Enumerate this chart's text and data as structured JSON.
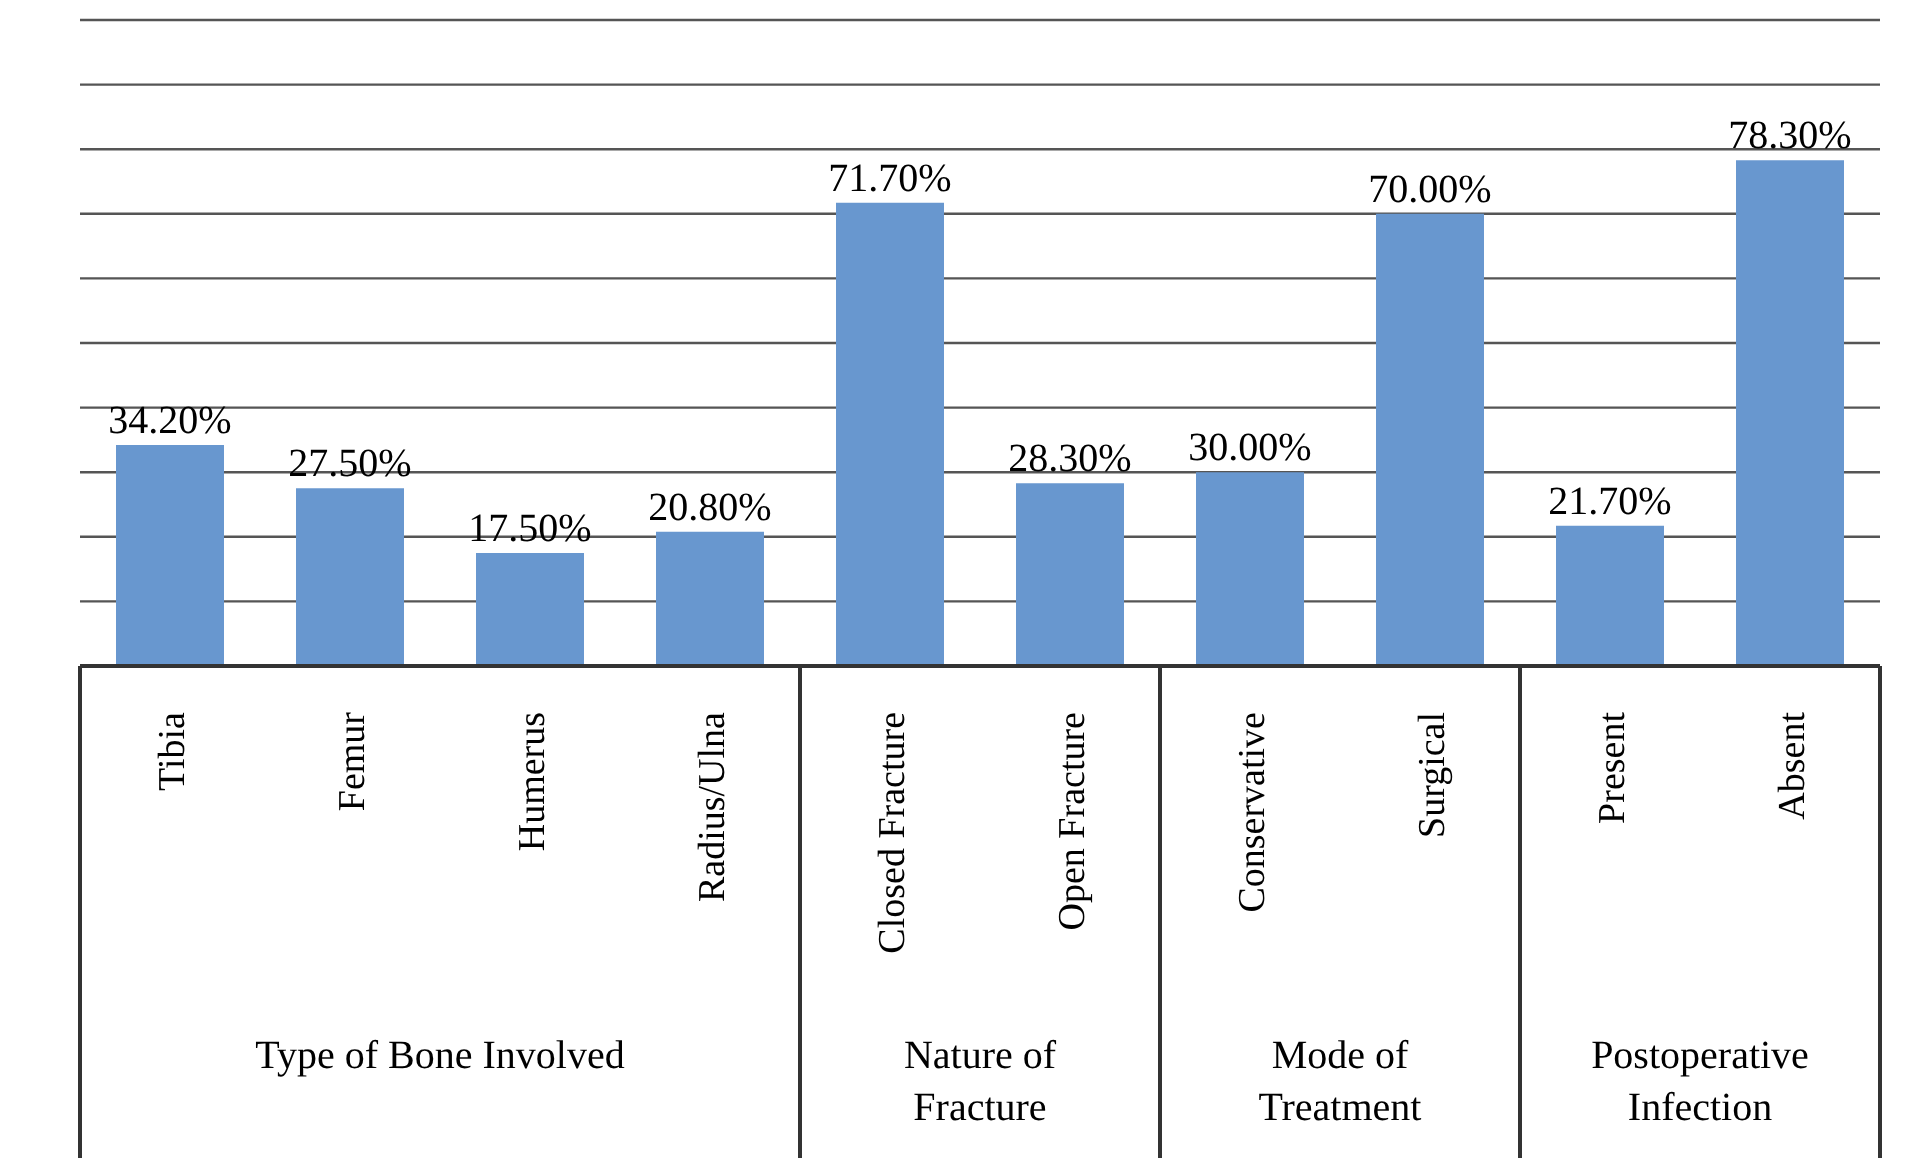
{
  "chart_data": {
    "type": "bar",
    "categories": [
      "Tibia",
      "Femur",
      "Humerus",
      "Radius/Ulna",
      "Closed Fracture",
      "Open Fracture",
      "Conservative",
      "Surgical",
      "Present",
      "Absent"
    ],
    "values": [
      34.2,
      27.5,
      17.5,
      20.8,
      71.7,
      28.3,
      30.0,
      70.0,
      21.7,
      78.3
    ],
    "value_labels": [
      "34.20%",
      "27.50%",
      "17.50%",
      "20.80%",
      "71.70%",
      "28.30%",
      "30.00%",
      "70.00%",
      "21.70%",
      "78.30%"
    ],
    "color": "#6897cf",
    "ylim": [
      0,
      100
    ],
    "yticks": [
      {
        "value": 0,
        "label": null
      },
      {
        "value": 10,
        "label": null
      },
      {
        "value": 20,
        "label": null
      },
      {
        "value": 30,
        "label": null
      },
      {
        "value": 40,
        "label": null
      },
      {
        "value": 50,
        "label": null
      },
      {
        "value": 60,
        "label": null
      },
      {
        "value": 70,
        "label": null
      },
      {
        "value": 80,
        "label": null
      },
      {
        "value": 90,
        "label": null
      },
      {
        "value": 100,
        "label": null
      }
    ],
    "tick_labels": "x",
    "grid": "y",
    "legend": false,
    "annotations": [
      "Type of Bone Involved",
      "Nature of Fracture",
      "Mode of Treatment",
      "Postoperative Infection"
    ]
  }
}
